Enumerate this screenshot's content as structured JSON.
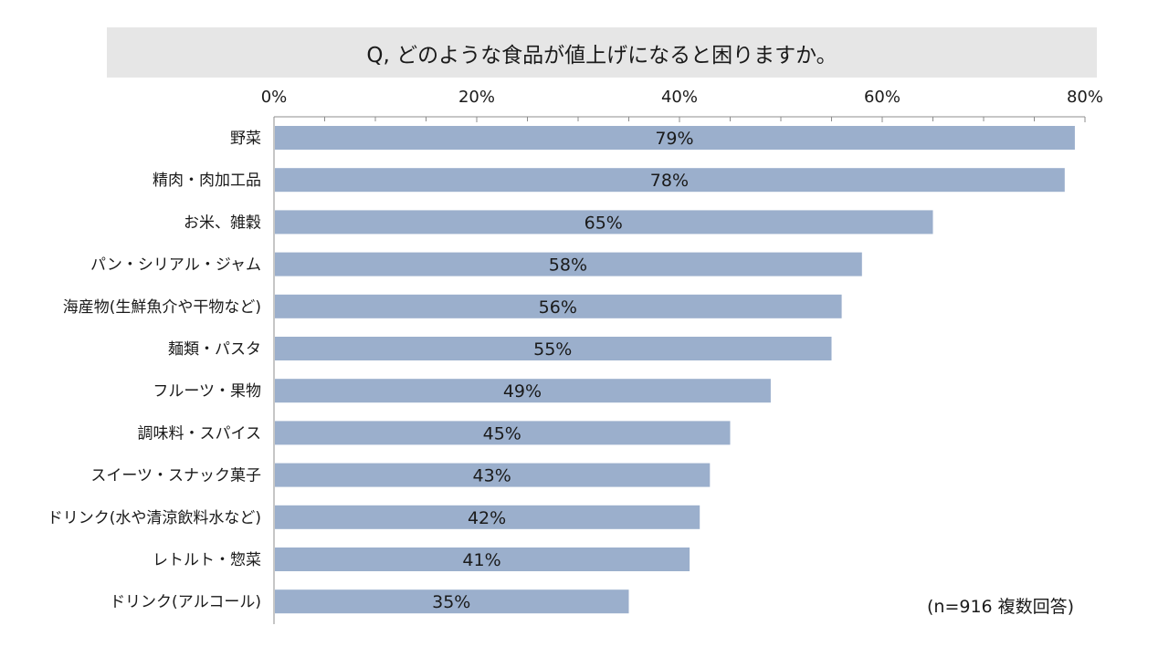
{
  "chart_data": {
    "type": "bar",
    "orientation": "horizontal",
    "title": "Q, どのような食品が値上げになると困りますか。",
    "categories": [
      "野菜",
      "精肉・肉加工品",
      "お米、雑穀",
      "パン・シリアル・ジャム",
      "海産物(生鮮魚介や干物など)",
      "麺類・パスタ",
      "フルーツ・果物",
      "調味料・スパイス",
      "スイーツ・スナック菓子",
      "ドリンク(水や清涼飲料水など)",
      "レトルト・惣菜",
      "ドリンク(アルコール)"
    ],
    "values": [
      79,
      78,
      65,
      58,
      56,
      55,
      49,
      45,
      43,
      42,
      41,
      35
    ],
    "value_labels": [
      "79%",
      "78%",
      "65%",
      "58%",
      "56%",
      "55%",
      "49%",
      "45%",
      "43%",
      "42%",
      "41%",
      "35%"
    ],
    "xlim": [
      0,
      80
    ],
    "xticks": [
      0,
      20,
      40,
      60,
      80
    ],
    "xtick_labels": [
      "0%",
      "20%",
      "40%",
      "60%",
      "80%"
    ],
    "axis_position": "top",
    "grid": false,
    "bar_color": "#9bafcc",
    "note": "(n=916 複数回答)"
  }
}
